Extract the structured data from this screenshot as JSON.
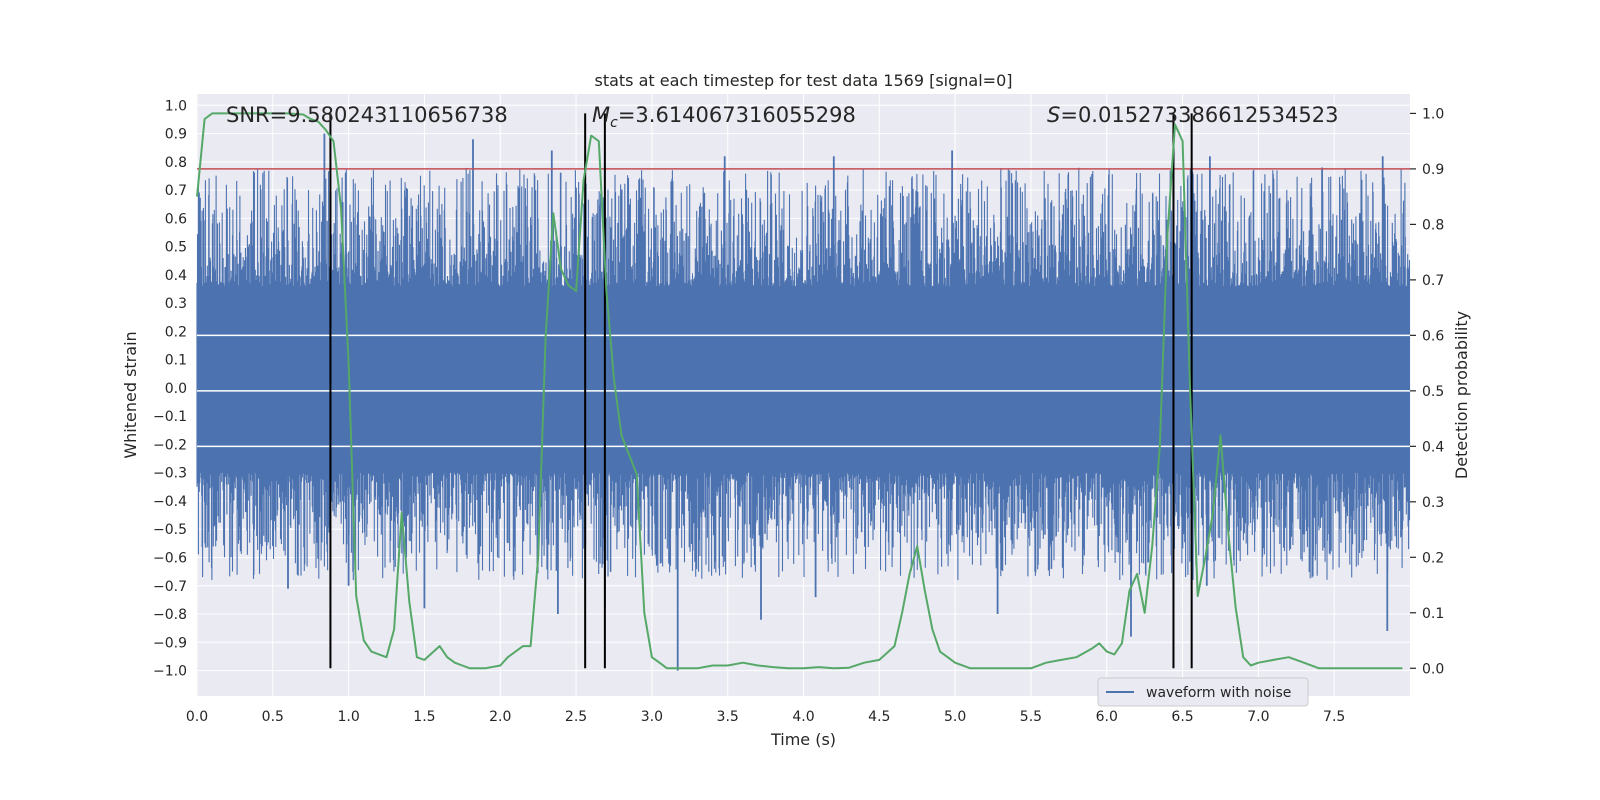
{
  "chart_data": {
    "type": "line",
    "title": "stats at each timestep for test data 1569 [signal=0]",
    "xlabel": "Time (s)",
    "ylabel": "Whitened strain",
    "y2label": "Detection probability",
    "xlim": [
      0.0,
      8.0
    ],
    "ylim": [
      -1.09,
      1.04
    ],
    "y2lim": [
      -0.05,
      1.035
    ],
    "x_ticks": [
      0.0,
      0.5,
      1.0,
      1.5,
      2.0,
      2.5,
      3.0,
      3.5,
      4.0,
      4.5,
      5.0,
      5.5,
      6.0,
      6.5,
      7.0,
      7.5
    ],
    "x_tick_labels": [
      "0.0",
      "0.5",
      "1.0",
      "1.5",
      "2.0",
      "2.5",
      "3.0",
      "3.5",
      "4.0",
      "4.5",
      "5.0",
      "5.5",
      "6.0",
      "6.5",
      "7.0",
      "7.5"
    ],
    "y_ticks": [
      1.0,
      0.9,
      0.8,
      0.7,
      0.6,
      0.5,
      0.4,
      0.3,
      0.2,
      0.1,
      0.0,
      -0.1,
      -0.2,
      -0.3,
      -0.4,
      -0.5,
      -0.6,
      -0.7,
      -0.8,
      -0.9,
      -1.0
    ],
    "y_tick_labels": [
      "1.0",
      "0.9",
      "0.8",
      "0.7",
      "0.6",
      "0.5",
      "0.4",
      "0.3",
      "0.2",
      "0.1",
      "0.0",
      "−0.1",
      "−0.2",
      "−0.3",
      "−0.4",
      "−0.5",
      "−0.6",
      "−0.7",
      "−0.8",
      "−0.9",
      "−1.0"
    ],
    "y2_ticks": [
      1.0,
      0.9,
      0.8,
      0.7,
      0.6,
      0.5,
      0.4,
      0.3,
      0.2,
      0.1,
      0.0
    ],
    "y2_tick_labels": [
      "1.0",
      "0.9",
      "0.8",
      "0.7",
      "0.6",
      "0.5",
      "0.4",
      "0.3",
      "0.2",
      "0.1",
      "0.0"
    ],
    "annotations": {
      "snr": "SNR=9.580243110656738",
      "mc_symbol": "M",
      "mc_sub": "c",
      "mc_value": "=3.614067316055298",
      "s_symbol": "S",
      "s_value": "=0.015273386612534523"
    },
    "waveform": {
      "name": "waveform with noise",
      "color": "#4c72b0",
      "core_band": [
        -0.3,
        0.36
      ],
      "description_envelope": [
        -0.5,
        0.6
      ],
      "spikes": [
        [
          0.84,
          0.9
        ],
        [
          1.82,
          0.88
        ],
        [
          2.34,
          0.84
        ],
        [
          3.48,
          0.82
        ],
        [
          4.2,
          0.82
        ],
        [
          4.98,
          0.84
        ],
        [
          6.44,
          0.94
        ],
        [
          6.68,
          0.82
        ],
        [
          7.42,
          0.78
        ],
        [
          7.82,
          0.82
        ],
        [
          1.0,
          -0.7
        ],
        [
          1.5,
          -0.78
        ],
        [
          2.38,
          -0.8
        ],
        [
          2.69,
          -0.78
        ],
        [
          3.17,
          -1.0
        ],
        [
          3.72,
          -0.82
        ],
        [
          4.08,
          -0.74
        ],
        [
          5.28,
          -0.8
        ],
        [
          6.16,
          -0.88
        ],
        [
          6.66,
          -0.7
        ],
        [
          7.85,
          -0.86
        ],
        [
          0.6,
          -0.71
        ]
      ]
    },
    "threshold": {
      "value": 0.9,
      "color": "#c44e52"
    },
    "detection_probability": {
      "color": "#55a868",
      "x": [
        0.0,
        0.05,
        0.1,
        0.2,
        0.3,
        0.4,
        0.5,
        0.6,
        0.7,
        0.75,
        0.8,
        0.85,
        0.9,
        0.95,
        1.0,
        1.05,
        1.1,
        1.15,
        1.25,
        1.3,
        1.35,
        1.4,
        1.45,
        1.5,
        1.6,
        1.65,
        1.7,
        1.75,
        1.8,
        1.9,
        2.0,
        2.05,
        2.15,
        2.2,
        2.25,
        2.3,
        2.35,
        2.4,
        2.45,
        2.5,
        2.55,
        2.6,
        2.65,
        2.7,
        2.75,
        2.8,
        2.9,
        2.95,
        3.0,
        3.05,
        3.1,
        3.2,
        3.3,
        3.4,
        3.5,
        3.6,
        3.7,
        3.8,
        3.9,
        4.0,
        4.1,
        4.2,
        4.3,
        4.4,
        4.5,
        4.6,
        4.65,
        4.7,
        4.75,
        4.8,
        4.85,
        4.9,
        5.0,
        5.1,
        5.2,
        5.3,
        5.5,
        5.6,
        5.7,
        5.8,
        5.9,
        5.95,
        6.0,
        6.05,
        6.1,
        6.15,
        6.2,
        6.25,
        6.3,
        6.35,
        6.4,
        6.45,
        6.5,
        6.55,
        6.6,
        6.65,
        6.7,
        6.75,
        6.8,
        6.85,
        6.9,
        6.95,
        7.0,
        7.1,
        7.2,
        7.3,
        7.4,
        7.5,
        7.6,
        7.7,
        7.8,
        7.95
      ],
      "y": [
        0.85,
        0.99,
        1.0,
        1.0,
        1.0,
        1.0,
        1.0,
        1.0,
        0.998,
        0.99,
        0.985,
        0.97,
        0.95,
        0.83,
        0.55,
        0.13,
        0.05,
        0.03,
        0.02,
        0.07,
        0.28,
        0.12,
        0.02,
        0.015,
        0.04,
        0.02,
        0.01,
        0.005,
        0.0,
        0.0,
        0.005,
        0.02,
        0.04,
        0.04,
        0.2,
        0.6,
        0.82,
        0.72,
        0.69,
        0.68,
        0.88,
        0.96,
        0.95,
        0.68,
        0.52,
        0.42,
        0.35,
        0.1,
        0.02,
        0.01,
        0.0,
        0.0,
        0.0,
        0.005,
        0.005,
        0.01,
        0.005,
        0.002,
        0.0,
        0.0,
        0.002,
        0.0,
        0.001,
        0.01,
        0.015,
        0.04,
        0.1,
        0.17,
        0.22,
        0.14,
        0.07,
        0.03,
        0.01,
        0.0,
        0.0,
        0.0,
        0.0,
        0.01,
        0.015,
        0.02,
        0.035,
        0.045,
        0.03,
        0.025,
        0.045,
        0.14,
        0.17,
        0.1,
        0.22,
        0.4,
        0.78,
        0.98,
        0.95,
        0.5,
        0.13,
        0.2,
        0.28,
        0.42,
        0.25,
        0.11,
        0.02,
        0.005,
        0.01,
        0.015,
        0.02,
        0.01,
        0.0,
        0.0,
        0.0,
        0.0,
        0.0,
        0.0
      ],
      "vertical_markers": [
        0.88,
        2.56,
        2.69,
        6.44,
        6.56
      ],
      "marker_color": "#000000"
    },
    "legend": {
      "entries": [
        "waveform with noise"
      ],
      "placement": "bottom-right"
    },
    "grid": true,
    "colors": {
      "background": "#eaeaf2",
      "grid": "#ffffff"
    }
  }
}
